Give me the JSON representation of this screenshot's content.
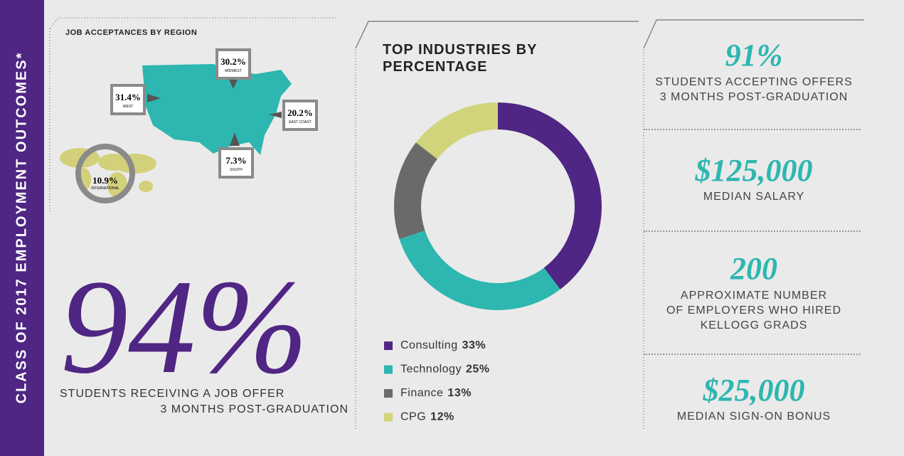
{
  "sidebar": {
    "title": "CLASS OF 2017 EMPLOYMENT OUTCOMES*"
  },
  "regions": {
    "title": "JOB ACCEPTANCES BY REGION",
    "items": [
      {
        "value": "31.4%",
        "name": "WEST"
      },
      {
        "value": "30.2%",
        "name": "MIDWEST"
      },
      {
        "value": "20.2%",
        "name": "EAST COAST"
      },
      {
        "value": "7.3%",
        "name": "SOUTH"
      },
      {
        "value": "10.9%",
        "name": "INTERNATIONAL"
      }
    ]
  },
  "headline": {
    "value": "94%",
    "text_line1": "STUDENTS RECEIVING A JOB OFFER",
    "text_line2": "3 MONTHS POST-GRADUATION"
  },
  "chart_data": {
    "type": "donut",
    "title": "TOP INDUSTRIES BY\nPERCENTAGE",
    "categories": [
      "Consulting",
      "Technology",
      "Finance",
      "CPG"
    ],
    "values": [
      33,
      25,
      13,
      12
    ],
    "value_labels": [
      "33%",
      "25%",
      "13%",
      "12%"
    ],
    "colors": [
      "#4f2683",
      "#2db7b0",
      "#6a6a6a",
      "#d2d47c"
    ]
  },
  "stats": [
    {
      "value": "91%",
      "label": "STUDENTS ACCEPTING OFFERS\n3 MONTHS POST-GRADUATION"
    },
    {
      "value": "$125,000",
      "label": "MEDIAN SALARY"
    },
    {
      "value": "200",
      "label": "APPROXIMATE NUMBER\nOF EMPLOYERS WHO HIRED\nKELLOGG GRADS"
    },
    {
      "value": "$25,000",
      "label": "MEDIAN SIGN-ON BONUS"
    }
  ]
}
